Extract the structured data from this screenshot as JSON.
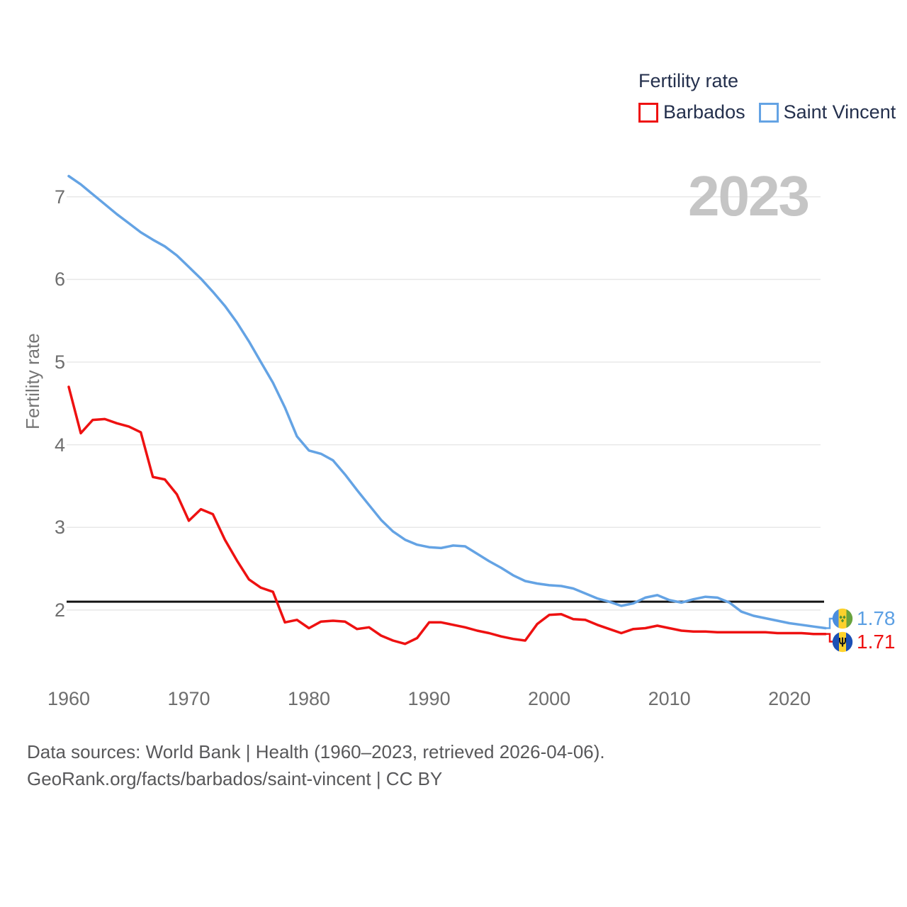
{
  "legend": {
    "title": "Fertility rate",
    "items": [
      {
        "label": "Barbados",
        "color": "#ee1111"
      },
      {
        "label": "Saint Vincent",
        "color": "#64a3e4"
      }
    ]
  },
  "watermark": "2023",
  "y_axis": {
    "title": "Fertility rate",
    "ticks": [
      "7",
      "6",
      "5",
      "4",
      "3",
      "2"
    ]
  },
  "x_axis": {
    "ticks": [
      "1960",
      "1970",
      "1980",
      "1990",
      "2000",
      "2010",
      "2020"
    ]
  },
  "end_labels": [
    {
      "series": "Saint Vincent",
      "value": "1.78",
      "color": "#5b9fe3"
    },
    {
      "series": "Barbados",
      "value": "1.71",
      "color": "#ee1111"
    }
  ],
  "footer": {
    "line1": "Data sources: World Bank | Health (1960–2023, retrieved 2026-04-06).",
    "line2": "GeoRank.org/facts/barbados/saint-vincent | CC BY"
  },
  "chart_data": {
    "type": "line",
    "title": "Fertility rate",
    "ylabel": "Fertility rate",
    "xlim": [
      1960,
      2023
    ],
    "ylim": [
      1.35,
      7.45
    ],
    "grid": "horizontal",
    "legend_position": "top-right",
    "reference_line": {
      "value": 2.1,
      "color": "#141414"
    },
    "x": [
      1960,
      1961,
      1962,
      1963,
      1964,
      1965,
      1966,
      1967,
      1968,
      1969,
      1970,
      1971,
      1972,
      1973,
      1974,
      1975,
      1976,
      1977,
      1978,
      1979,
      1980,
      1981,
      1982,
      1983,
      1984,
      1985,
      1986,
      1987,
      1988,
      1989,
      1990,
      1991,
      1992,
      1993,
      1994,
      1995,
      1996,
      1997,
      1998,
      1999,
      2000,
      2001,
      2002,
      2003,
      2004,
      2005,
      2006,
      2007,
      2008,
      2009,
      2010,
      2011,
      2012,
      2013,
      2014,
      2015,
      2016,
      2017,
      2018,
      2019,
      2020,
      2021,
      2022,
      2023
    ],
    "series": [
      {
        "name": "Saint Vincent",
        "color": "#64a3e4",
        "values": [
          7.25,
          7.15,
          7.03,
          6.91,
          6.79,
          6.68,
          6.57,
          6.48,
          6.4,
          6.29,
          6.15,
          6.01,
          5.85,
          5.68,
          5.48,
          5.25,
          5.0,
          4.75,
          4.45,
          4.1,
          3.93,
          3.89,
          3.81,
          3.64,
          3.45,
          3.27,
          3.09,
          2.95,
          2.85,
          2.79,
          2.76,
          2.75,
          2.78,
          2.77,
          2.68,
          2.59,
          2.51,
          2.42,
          2.35,
          2.32,
          2.3,
          2.29,
          2.26,
          2.2,
          2.14,
          2.1,
          2.05,
          2.08,
          2.15,
          2.18,
          2.12,
          2.09,
          2.13,
          2.16,
          2.15,
          2.09,
          1.98,
          1.93,
          1.9,
          1.87,
          1.84,
          1.82,
          1.8,
          1.78
        ]
      },
      {
        "name": "Barbados",
        "color": "#ee1111",
        "values": [
          4.7,
          4.14,
          4.3,
          4.31,
          4.26,
          4.22,
          4.15,
          3.61,
          3.58,
          3.4,
          3.08,
          3.22,
          3.16,
          2.85,
          2.6,
          2.37,
          2.27,
          2.22,
          1.85,
          1.88,
          1.78,
          1.86,
          1.87,
          1.86,
          1.77,
          1.79,
          1.69,
          1.63,
          1.59,
          1.66,
          1.85,
          1.85,
          1.82,
          1.79,
          1.75,
          1.72,
          1.68,
          1.65,
          1.63,
          1.83,
          1.94,
          1.95,
          1.89,
          1.88,
          1.82,
          1.77,
          1.72,
          1.77,
          1.78,
          1.81,
          1.78,
          1.75,
          1.74,
          1.74,
          1.73,
          1.73,
          1.73,
          1.73,
          1.73,
          1.72,
          1.72,
          1.72,
          1.71,
          1.71
        ]
      }
    ]
  }
}
